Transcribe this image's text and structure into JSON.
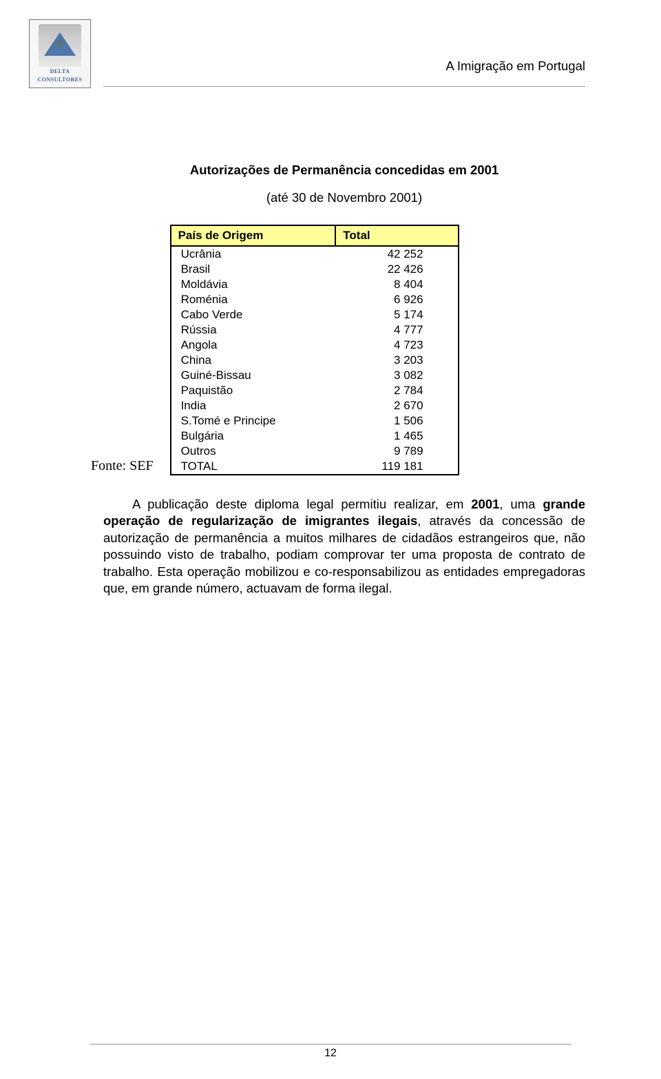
{
  "logo": {
    "line1": "DELTA",
    "line2": "CONSULTORES"
  },
  "header": {
    "doc_title": "A Imigração em Portugal"
  },
  "section": {
    "title": "Autorizações de Permanência concedidas em 2001",
    "subtitle": "(até 30 de Novembro 2001)"
  },
  "table": {
    "source_label": "Fonte: SEF",
    "col_country": "País de Origem",
    "col_total": "Total",
    "rows": [
      {
        "country": "Ucrânia",
        "value": "42 252"
      },
      {
        "country": "Brasil",
        "value": "22 426"
      },
      {
        "country": "Moldávia",
        "value": "8 404"
      },
      {
        "country": "Roménia",
        "value": "6 926"
      },
      {
        "country": "Cabo Verde",
        "value": "5 174"
      },
      {
        "country": "Rússia",
        "value": "4 777"
      },
      {
        "country": "Angola",
        "value": "4 723"
      },
      {
        "country": "China",
        "value": "3 203"
      },
      {
        "country": "Guiné-Bissau",
        "value": "3 082"
      },
      {
        "country": "Paquistão",
        "value": "2 784"
      },
      {
        "country": "India",
        "value": "2 670"
      },
      {
        "country": "S.Tomé e Principe",
        "value": "1 506"
      },
      {
        "country": "Bulgária",
        "value": "1 465"
      },
      {
        "country": "Outros",
        "value": "9 789"
      }
    ],
    "total_row": {
      "country": "TOTAL",
      "value": "119 181"
    }
  },
  "paragraph": {
    "p1_a": "A publicação deste diploma legal permitiu realizar, em ",
    "p1_b": "2001",
    "p1_c": ", uma ",
    "p1_d": "grande operação de regularização de imigrantes ilegais",
    "p1_e": ", através da concessão de autorização de permanência a muitos milhares de cidadãos estrangeiros que, não possuindo visto de trabalho, podiam  comprovar ter uma proposta de contrato de trabalho. Esta operação mobilizou e co-responsabilizou as entidades empregadoras que, em grande número, actuavam de forma ilegal."
  },
  "footer": {
    "page_number": "12"
  }
}
